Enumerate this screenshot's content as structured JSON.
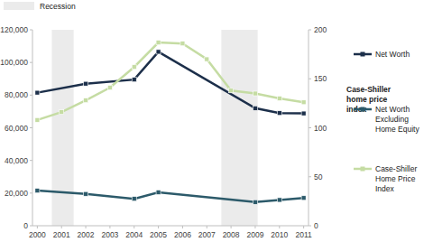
{
  "chart_data": {
    "type": "line",
    "y2label": "Case-Shiller home price index",
    "x": [
      2000,
      2001,
      2002,
      2003,
      2004,
      2005,
      2006,
      2007,
      2008,
      2009,
      2010,
      2011
    ],
    "xlim": [
      1999.8,
      2011.2
    ],
    "xticks": [
      2000,
      2001,
      2002,
      2003,
      2004,
      2005,
      2006,
      2007,
      2008,
      2009,
      2010,
      2011
    ],
    "ylim": [
      0,
      120000
    ],
    "yticks": [
      0,
      {
        "value": 20000,
        "label": "20,000"
      },
      {
        "value": 40000,
        "label": "40,000"
      },
      {
        "value": 60000,
        "label": "60,000"
      },
      {
        "value": 80000,
        "label": "80,000"
      },
      {
        "value": 100000,
        "label": "100,000"
      },
      {
        "value": 120000,
        "label": "120,000"
      }
    ],
    "y2lim": [
      0,
      200
    ],
    "y2ticks": [
      0,
      50,
      100,
      150,
      200
    ],
    "grid": false,
    "legend": "right",
    "recession": {
      "name": "Recession",
      "color": "#ebebeb",
      "periods": [
        [
          2000.6,
          2001.5
        ],
        [
          2007.6,
          2009.1
        ]
      ]
    },
    "series": [
      {
        "name": "Net Worth",
        "color": "#1c2f4a",
        "marker": "square",
        "x": [
          2000,
          2002,
          2004,
          2005,
          2009,
          2010,
          2011
        ],
        "values": [
          81500,
          87000,
          89500,
          106500,
          72000,
          69000,
          68800
        ]
      },
      {
        "name": "Net Worth Excluding Home Equity",
        "color": "#2c5a6a",
        "marker": "square",
        "x": [
          2000,
          2002,
          2004,
          2005,
          2009,
          2010,
          2011
        ],
        "values": [
          21500,
          19500,
          16500,
          20500,
          14500,
          15800,
          17000
        ]
      },
      {
        "name": "Case-Shiller Home Price Index",
        "color": "#c5dca3",
        "marker": "square",
        "axis": "y2",
        "x": [
          2000,
          2001,
          2002,
          2003,
          2004,
          2005,
          2006,
          2007,
          2008,
          2009,
          2010,
          2011
        ],
        "values": [
          108,
          116,
          128,
          141,
          162,
          187,
          186,
          170,
          138,
          135,
          130,
          126
        ]
      }
    ]
  }
}
